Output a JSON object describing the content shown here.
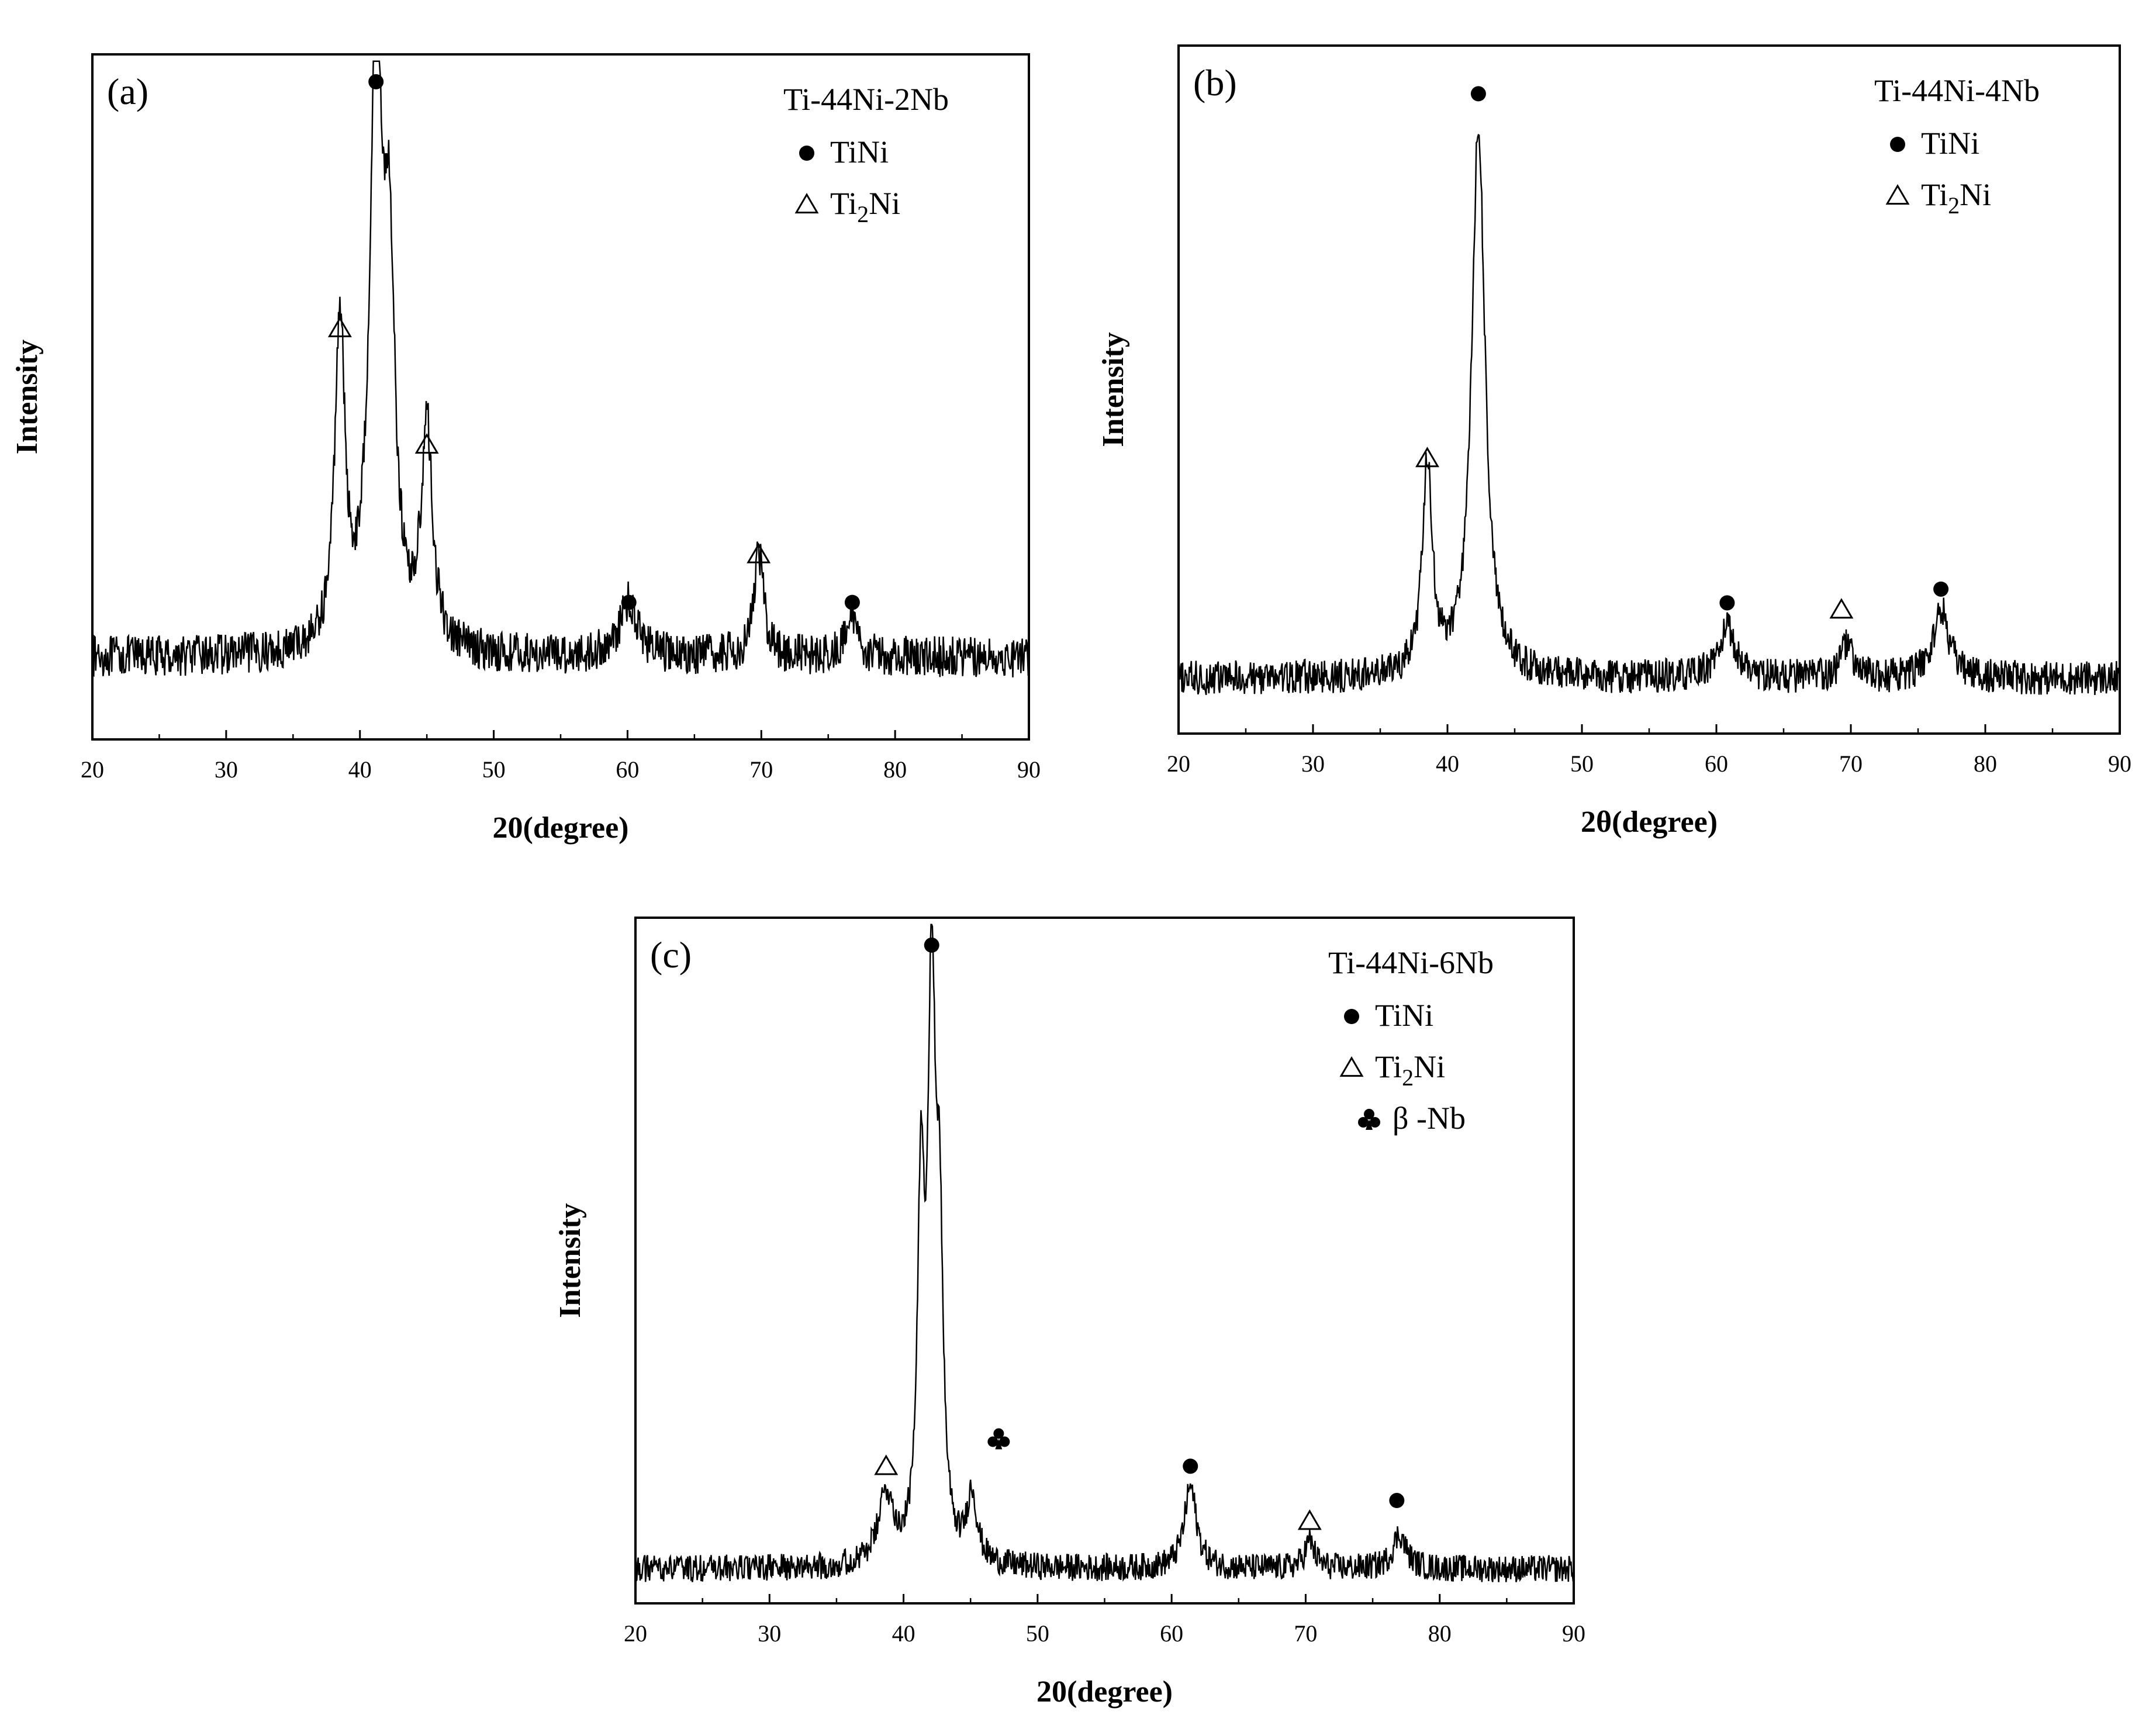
{
  "chart_data": [
    {
      "type": "line",
      "panel_label": "(a)",
      "title": "Ti-44Ni-2Nb",
      "xlabel": "20(degree)",
      "ylabel": "Intensity",
      "xlim": [
        20,
        90
      ],
      "xticks": [
        20,
        30,
        40,
        50,
        60,
        70,
        80,
        90
      ],
      "ylim": [
        0,
        1
      ],
      "legend_position": "top-right",
      "legend": [
        {
          "marker": "circle",
          "label_main": "TiNi",
          "label_sub": ""
        },
        {
          "marker": "triangle",
          "label_main": "Ti",
          "label_sub": "2",
          "label_tail": "Ni"
        }
      ],
      "baseline": 0.12,
      "noise": 0.03,
      "peaks": [
        {
          "x": 38.5,
          "height": 0.48,
          "width": 0.45
        },
        {
          "x": 41.2,
          "height": 0.88,
          "width": 0.55
        },
        {
          "x": 42.2,
          "height": 0.5,
          "width": 0.5
        },
        {
          "x": 45.0,
          "height": 0.32,
          "width": 0.5
        },
        {
          "x": 60.1,
          "height": 0.08,
          "width": 0.8
        },
        {
          "x": 69.8,
          "height": 0.15,
          "width": 0.45
        },
        {
          "x": 76.8,
          "height": 0.06,
          "width": 0.5
        }
      ],
      "markers": [
        {
          "x": 38.5,
          "y": 0.6,
          "type": "triangle"
        },
        {
          "x": 41.2,
          "y": 0.96,
          "type": "circle"
        },
        {
          "x": 45.0,
          "y": 0.43,
          "type": "triangle"
        },
        {
          "x": 60.1,
          "y": 0.2,
          "type": "circle"
        },
        {
          "x": 69.8,
          "y": 0.27,
          "type": "triangle"
        },
        {
          "x": 76.8,
          "y": 0.2,
          "type": "circle"
        }
      ]
    },
    {
      "type": "line",
      "panel_label": "(b)",
      "title": "Ti-44Ni-4Nb",
      "xlabel": "2θ(degree)",
      "ylabel": "Intensity",
      "xlim": [
        20,
        90
      ],
      "xticks": [
        20,
        30,
        40,
        50,
        60,
        70,
        80,
        90
      ],
      "ylim": [
        0,
        1
      ],
      "legend_position": "top-right",
      "legend": [
        {
          "marker": "circle",
          "label_main": "TiNi",
          "label_sub": ""
        },
        {
          "marker": "triangle",
          "label_main": "Ti",
          "label_sub": "2",
          "label_tail": "Ni"
        }
      ],
      "baseline": 0.08,
      "noise": 0.025,
      "peaks": [
        {
          "x": 38.5,
          "height": 0.3,
          "width": 0.45
        },
        {
          "x": 42.3,
          "height": 0.8,
          "width": 0.6
        },
        {
          "x": 60.8,
          "height": 0.07,
          "width": 0.8
        },
        {
          "x": 69.7,
          "height": 0.05,
          "width": 0.5
        },
        {
          "x": 76.7,
          "height": 0.1,
          "width": 0.7
        }
      ],
      "markers": [
        {
          "x": 38.5,
          "y": 0.4,
          "type": "triangle"
        },
        {
          "x": 42.3,
          "y": 0.93,
          "type": "circle"
        },
        {
          "x": 60.8,
          "y": 0.19,
          "type": "circle"
        },
        {
          "x": 69.3,
          "y": 0.18,
          "type": "triangle"
        },
        {
          "x": 76.7,
          "y": 0.21,
          "type": "circle"
        }
      ]
    },
    {
      "type": "line",
      "panel_label": "(c)",
      "title": "Ti-44Ni-6Nb",
      "xlabel": "20(degree)",
      "ylabel": "Intensity",
      "xlim": [
        20,
        90
      ],
      "xticks": [
        20,
        30,
        40,
        50,
        60,
        70,
        80,
        90
      ],
      "ylim": [
        0,
        1
      ],
      "legend_position": "top-right",
      "legend": [
        {
          "marker": "circle",
          "label_main": "TiNi",
          "label_sub": ""
        },
        {
          "marker": "triangle",
          "label_main": "Ti",
          "label_sub": "2",
          "label_tail": "Ni"
        },
        {
          "marker": "club",
          "label_main": "β -Nb",
          "label_sub": ""
        }
      ],
      "baseline": 0.05,
      "noise": 0.02,
      "peaks": [
        {
          "x": 38.7,
          "height": 0.1,
          "width": 0.7
        },
        {
          "x": 41.3,
          "height": 0.5,
          "width": 0.3
        },
        {
          "x": 42.1,
          "height": 0.82,
          "width": 0.35
        },
        {
          "x": 42.7,
          "height": 0.4,
          "width": 0.3
        },
        {
          "x": 45.1,
          "height": 0.1,
          "width": 0.45
        },
        {
          "x": 61.4,
          "height": 0.12,
          "width": 0.55
        },
        {
          "x": 70.3,
          "height": 0.04,
          "width": 0.45
        },
        {
          "x": 77.0,
          "height": 0.05,
          "width": 0.6
        }
      ],
      "markers": [
        {
          "x": 38.7,
          "y": 0.2,
          "type": "triangle"
        },
        {
          "x": 42.1,
          "y": 0.96,
          "type": "circle"
        },
        {
          "x": 47.1,
          "y": 0.24,
          "type": "club"
        },
        {
          "x": 61.4,
          "y": 0.2,
          "type": "circle"
        },
        {
          "x": 70.3,
          "y": 0.12,
          "type": "triangle"
        },
        {
          "x": 76.8,
          "y": 0.15,
          "type": "circle"
        }
      ]
    }
  ]
}
